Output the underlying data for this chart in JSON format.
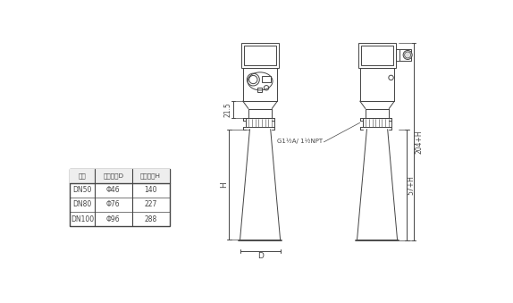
{
  "bg_color": "#ffffff",
  "line_color": "#444444",
  "table": {
    "headers": [
      "法兰",
      "喂口直径D",
      "喂口高度H"
    ],
    "rows": [
      [
        "DN50",
        "Φ46",
        "140"
      ],
      [
        "DN80",
        "Φ76",
        "227"
      ],
      [
        "DN100",
        "Φ96",
        "288"
      ]
    ]
  },
  "dim_215": "21.5",
  "dim_H": "H",
  "dim_D": "D",
  "dim_204H": "204+H",
  "dim_57H": "57+H",
  "label_G": "G1½A/ 1½NPT"
}
